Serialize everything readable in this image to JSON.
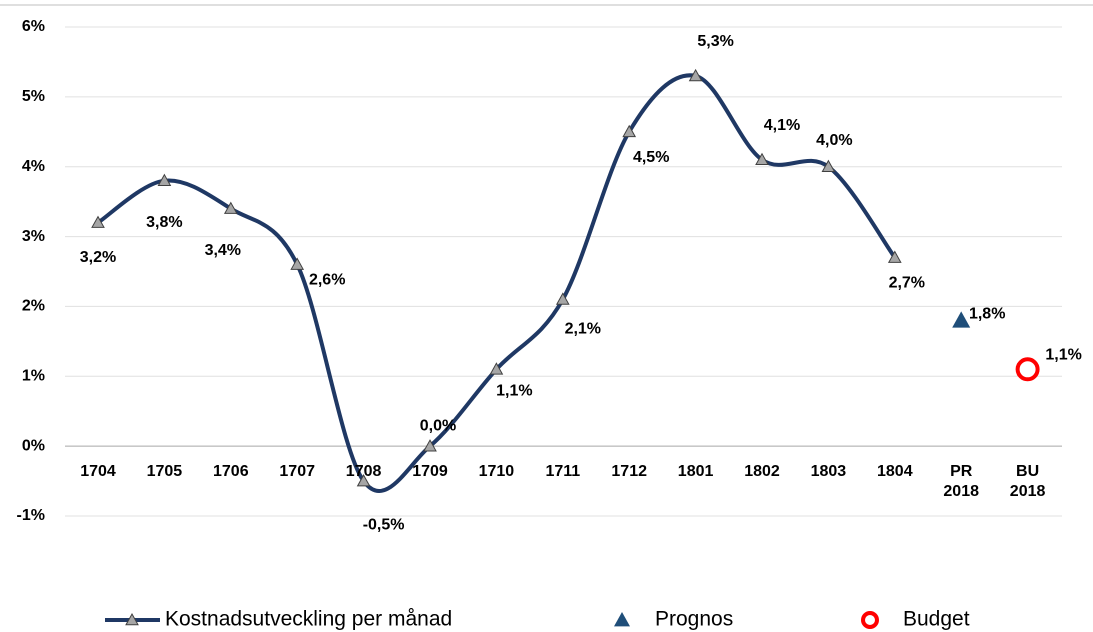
{
  "chart_data": {
    "type": "line",
    "categories": [
      "1704",
      "1705",
      "1706",
      "1707",
      "1708",
      "1709",
      "1710",
      "1711",
      "1712",
      "1801",
      "1802",
      "1803",
      "1804",
      "PR 2018",
      "BU 2018"
    ],
    "series": [
      {
        "name": "Kostnadsutveckling per månad",
        "color": "#1f3864",
        "marker_color": "#a6a6a6",
        "values": [
          3.2,
          3.8,
          3.4,
          2.6,
          -0.5,
          0.0,
          1.1,
          2.1,
          4.5,
          5.3,
          4.1,
          4.0,
          2.7,
          null,
          null
        ],
        "value_labels": [
          "3,2%",
          "3,8%",
          "3,4%",
          "2,6%",
          "-0,5%",
          "0,0%",
          "1,1%",
          "2,1%",
          "4,5%",
          "5,3%",
          "4,1%",
          "4,0%",
          "2,7%",
          null,
          null
        ]
      },
      {
        "name": "Prognos",
        "color": "#1f4e79",
        "values": [
          null,
          null,
          null,
          null,
          null,
          null,
          null,
          null,
          null,
          null,
          null,
          null,
          null,
          1.8,
          null
        ],
        "value_labels": [
          null,
          null,
          null,
          null,
          null,
          null,
          null,
          null,
          null,
          null,
          null,
          null,
          null,
          "1,8%",
          null
        ]
      },
      {
        "name": "Budget",
        "color": "#ff0000",
        "values": [
          null,
          null,
          null,
          null,
          null,
          null,
          null,
          null,
          null,
          null,
          null,
          null,
          null,
          null,
          1.1
        ],
        "value_labels": [
          null,
          null,
          null,
          null,
          null,
          null,
          null,
          null,
          null,
          null,
          null,
          null,
          null,
          null,
          "1,1%"
        ]
      }
    ],
    "ylim": [
      -1,
      6
    ],
    "yticks": [
      {
        "value": -1,
        "label": "-1%"
      },
      {
        "value": 0,
        "label": "0%"
      },
      {
        "value": 1,
        "label": "1%"
      },
      {
        "value": 2,
        "label": "2%"
      },
      {
        "value": 3,
        "label": "3%"
      },
      {
        "value": 4,
        "label": "4%"
      },
      {
        "value": 5,
        "label": "5%"
      },
      {
        "value": 6,
        "label": "6%"
      }
    ],
    "grid": true
  }
}
